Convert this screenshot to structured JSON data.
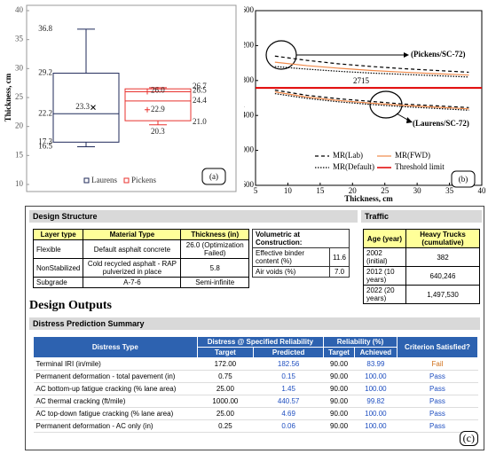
{
  "chart_data": [
    {
      "type": "box",
      "panel_label": "(a)",
      "ylabel": "Thickness, cm",
      "ylim": [
        10,
        40
      ],
      "yticks": [
        10,
        15,
        20,
        25,
        30,
        35,
        40
      ],
      "boxes": [
        {
          "name": "Laurens",
          "color": "#1f2a5a",
          "min": 16.5,
          "q1": 17.3,
          "median": 22.2,
          "mean": 23.3,
          "q3": 29.2,
          "max": 36.8
        },
        {
          "name": "Pickens",
          "color": "#e8322e",
          "min": 20.3,
          "q1": 21.0,
          "median": 24.4,
          "mean": 22.9,
          "other": 26.0,
          "q3": 26.5,
          "max": 26.7,
          "value_labels": {
            "q1": "21.0",
            "other": "26.0"
          }
        }
      ]
    },
    {
      "type": "line",
      "panel_label": "(b)",
      "xlabel": "Thickness, cm",
      "ylabel": "IRI, mm/km",
      "xlim": [
        5,
        40
      ],
      "xticks": [
        5,
        10,
        15,
        20,
        25,
        30,
        35,
        40
      ],
      "ylim": [
        1600,
        3600
      ],
      "yticks": [
        1600,
        2000,
        2400,
        2800,
        3200,
        3600
      ],
      "x": [
        8,
        13,
        18,
        23,
        28,
        33,
        38
      ],
      "series": [
        {
          "name": "MR(Lab)",
          "color": "#000000",
          "dash": "4 3",
          "pickens": [
            3080,
            3030,
            2990,
            2960,
            2935,
            2915,
            2895
          ],
          "laurens": [
            2690,
            2630,
            2590,
            2560,
            2530,
            2510,
            2490
          ]
        },
        {
          "name": "MR(FWD)",
          "color": "#f08a4b",
          "dash": "",
          "pickens": [
            3010,
            2970,
            2940,
            2915,
            2895,
            2878,
            2862
          ],
          "laurens": [
            2670,
            2610,
            2570,
            2540,
            2515,
            2495,
            2475
          ]
        },
        {
          "name": "MR(Default)",
          "color": "#000000",
          "dash": "1.5 1.5",
          "pickens": [
            2960,
            2930,
            2905,
            2885,
            2870,
            2855,
            2840
          ],
          "laurens": [
            2650,
            2595,
            2555,
            2525,
            2500,
            2480,
            2460
          ]
        }
      ],
      "threshold": {
        "name": "Threshold limit",
        "color": "#e00000",
        "value": 2715
      },
      "annotations": [
        "(Pickens/SC-72)",
        "(Laurens/SC-72)"
      ]
    }
  ],
  "panel_c": {
    "panel_label": "(c)",
    "design_structure": {
      "title": "Design Structure",
      "headers": [
        "Layer type",
        "Material Type",
        "Thickness (in)"
      ],
      "rows": [
        [
          "Flexible",
          "Default asphalt concrete",
          "26.0 (Optimization Failed)"
        ],
        [
          "NonStabilized",
          "Cold recycled asphalt - RAP pulverized in place",
          "5.8"
        ],
        [
          "Subgrade",
          "A-7-6",
          "Semi-infinite"
        ]
      ]
    },
    "volumetric": {
      "title": "Volumetric at Construction:",
      "rows": [
        [
          "Effective binder content (%)",
          "11.6"
        ],
        [
          "Air voids (%)",
          "7.0"
        ]
      ]
    },
    "traffic": {
      "title": "Traffic",
      "headers": [
        "Age (year)",
        "Heavy Trucks (cumulative)"
      ],
      "rows": [
        [
          "2002 (initial)",
          "382"
        ],
        [
          "2012 (10 years)",
          "640,246"
        ],
        [
          "2022 (20 years)",
          "1,497,530"
        ]
      ]
    },
    "outputs_title": "Design Outputs",
    "distress": {
      "title": "Distress Prediction Summary",
      "headers": [
        "Distress Type",
        "Distress @ Specified Reliability",
        "Reliability (%)",
        "Criterion Satisfied?"
      ],
      "subheaders": [
        "Target",
        "Predicted",
        "Target",
        "Achieved"
      ],
      "rows": [
        {
          "cells": [
            "Terminal IRI (in/mile)",
            "172.00",
            "182.56",
            "90.00",
            "83.99",
            "Fail"
          ],
          "criterion_color": "#d0701a"
        },
        {
          "cells": [
            "Permanent deformation - total pavement (in)",
            "0.75",
            "0.15",
            "90.00",
            "100.00",
            "Pass"
          ],
          "criterion_color": "#1f4fc0"
        },
        {
          "cells": [
            "AC bottom-up fatigue cracking (% lane area)",
            "25.00",
            "1.45",
            "90.00",
            "100.00",
            "Pass"
          ],
          "criterion_color": "#1f4fc0"
        },
        {
          "cells": [
            "AC thermal cracking (ft/mile)",
            "1000.00",
            "440.57",
            "90.00",
            "99.82",
            "Pass"
          ],
          "criterion_color": "#1f4fc0"
        },
        {
          "cells": [
            "AC top-down fatigue cracking (% lane area)",
            "25.00",
            "4.69",
            "90.00",
            "100.00",
            "Pass"
          ],
          "criterion_color": "#1f4fc0"
        },
        {
          "cells": [
            "Permanent deformation - AC only (in)",
            "0.25",
            "0.06",
            "90.00",
            "100.00",
            "Pass"
          ],
          "criterion_color": "#1f4fc0"
        }
      ]
    }
  }
}
